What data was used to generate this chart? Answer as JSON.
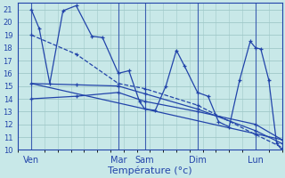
{
  "background_color": "#c8e8e8",
  "grid_color": "#a0c8c8",
  "line_color": "#2244aa",
  "xlabel": "Température (°c)",
  "ylim": [
    10,
    21.5
  ],
  "yticks": [
    10,
    11,
    12,
    13,
    14,
    15,
    16,
    17,
    18,
    19,
    20,
    21
  ],
  "xlim": [
    0,
    100
  ],
  "day_labels": [
    "Ven",
    "Mar",
    "Sam",
    "Dim",
    "Lun"
  ],
  "day_positions": [
    5,
    38,
    48,
    68,
    90
  ],
  "vline_positions": [
    5,
    38,
    48,
    68,
    90
  ],
  "series0_x": [
    5,
    8,
    12,
    17,
    22,
    28,
    32,
    38,
    42,
    46,
    48,
    52,
    56,
    60,
    63,
    68,
    72,
    76,
    80,
    84,
    88,
    90,
    92,
    95,
    98,
    100
  ],
  "series0_y": [
    21,
    19.5,
    15.2,
    20.9,
    21.3,
    18.9,
    18.8,
    16.0,
    16.2,
    13.8,
    13.2,
    13.1,
    15.0,
    17.8,
    16.6,
    14.5,
    14.2,
    12.2,
    11.8,
    15.5,
    18.5,
    18.0,
    17.9,
    15.5,
    10.5,
    10.0
  ],
  "series1_x": [
    5,
    22,
    38,
    48,
    68,
    90,
    100
  ],
  "series1_y": [
    19.0,
    17.5,
    15.2,
    14.8,
    13.5,
    11.2,
    10.2
  ],
  "series2_x": [
    5,
    22,
    38,
    48,
    68,
    90,
    100
  ],
  "series2_y": [
    15.2,
    15.1,
    15.0,
    14.4,
    13.2,
    11.5,
    10.5
  ],
  "series3_x": [
    5,
    22,
    38,
    48,
    68,
    90,
    100
  ],
  "series3_y": [
    14.0,
    14.2,
    14.5,
    13.8,
    13.0,
    12.0,
    10.8
  ],
  "series4_x": [
    5,
    100
  ],
  "series4_y": [
    15.2,
    10.8
  ]
}
